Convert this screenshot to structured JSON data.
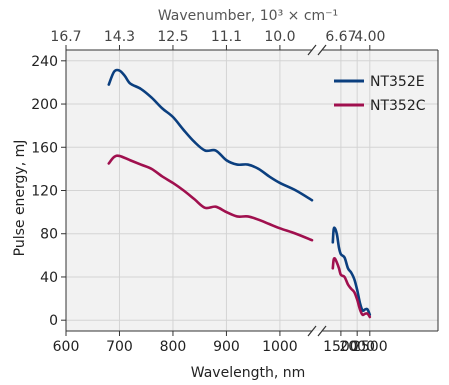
{
  "chart_data": {
    "type": "line",
    "xlabel": "Wavelength, nm",
    "ylabel": "Pulse energy, mJ",
    "top_xlabel": "Wavenumber, 10³ × cm⁻¹",
    "ylim": [
      -10,
      250
    ],
    "grid": true,
    "legend_position": "top-right",
    "x_axis_break": true,
    "y_ticks": [
      "0",
      "40",
      "80",
      "120",
      "160",
      "200",
      "240"
    ],
    "bottom_ticks_left": [
      600,
      700,
      800,
      900,
      1000
    ],
    "bottom_ticks_right": [
      1500,
      2000,
      2500
    ],
    "bottom_tick_labels_left": [
      "600",
      "700",
      "800",
      "900",
      "1000"
    ],
    "bottom_tick_labels_right": [
      "1500",
      "2000",
      "2500"
    ],
    "top_ticks_left_wavelength": [
      600,
      700,
      800,
      900,
      1000
    ],
    "top_tick_labels_left": [
      "16.7",
      "14.3",
      "12.5",
      "11.1",
      "10.0"
    ],
    "top_ticks_right_wavelength": [
      1500,
      2500
    ],
    "top_tick_labels_right": [
      "6.67",
      "4.00"
    ],
    "series": [
      {
        "name": "NT352E",
        "color": "#0b3f7f",
        "segments": [
          [
            [
              680,
              218
            ],
            [
              690,
              230
            ],
            [
              700,
              231
            ],
            [
              710,
              226
            ],
            [
              720,
              219
            ],
            [
              740,
              214
            ],
            [
              760,
              206
            ],
            [
              780,
              196
            ],
            [
              800,
              188
            ],
            [
              820,
              176
            ],
            [
              840,
              165
            ],
            [
              860,
              157
            ],
            [
              880,
              157
            ],
            [
              900,
              148
            ],
            [
              920,
              144
            ],
            [
              940,
              144
            ],
            [
              960,
              140
            ],
            [
              980,
              133
            ],
            [
              1000,
              127
            ],
            [
              1030,
              120
            ],
            [
              1060,
              111
            ]
          ],
          [
            [
              1300,
              72
            ],
            [
              1320,
              84
            ],
            [
              1350,
              85
            ],
            [
              1400,
              79
            ],
            [
              1450,
              67
            ],
            [
              1500,
              61
            ],
            [
              1600,
              58
            ],
            [
              1700,
              48
            ],
            [
              1800,
              44
            ],
            [
              1900,
              38
            ],
            [
              2000,
              28
            ],
            [
              2100,
              16
            ],
            [
              2200,
              9
            ],
            [
              2300,
              10
            ],
            [
              2400,
              10
            ],
            [
              2500,
              5
            ]
          ]
        ]
      },
      {
        "name": "NT352C",
        "color": "#a0104e",
        "segments": [
          [
            [
              680,
              145
            ],
            [
              690,
              151
            ],
            [
              700,
              152
            ],
            [
              720,
              148
            ],
            [
              740,
              144
            ],
            [
              760,
              140
            ],
            [
              780,
              133
            ],
            [
              800,
              127
            ],
            [
              820,
              120
            ],
            [
              840,
              112
            ],
            [
              860,
              104
            ],
            [
              880,
              105
            ],
            [
              900,
              100
            ],
            [
              920,
              96
            ],
            [
              940,
              96
            ],
            [
              960,
              93
            ],
            [
              980,
              89
            ],
            [
              1000,
              85
            ],
            [
              1030,
              80
            ],
            [
              1060,
              74
            ]
          ],
          [
            [
              1300,
              48
            ],
            [
              1320,
              56
            ],
            [
              1350,
              57
            ],
            [
              1400,
              53
            ],
            [
              1450,
              48
            ],
            [
              1500,
              42
            ],
            [
              1600,
              40
            ],
            [
              1700,
              33
            ],
            [
              1800,
              29
            ],
            [
              1900,
              26
            ],
            [
              2000,
              19
            ],
            [
              2100,
              10
            ],
            [
              2200,
              5
            ],
            [
              2300,
              6
            ],
            [
              2400,
              6
            ],
            [
              2500,
              3
            ]
          ]
        ]
      }
    ]
  }
}
